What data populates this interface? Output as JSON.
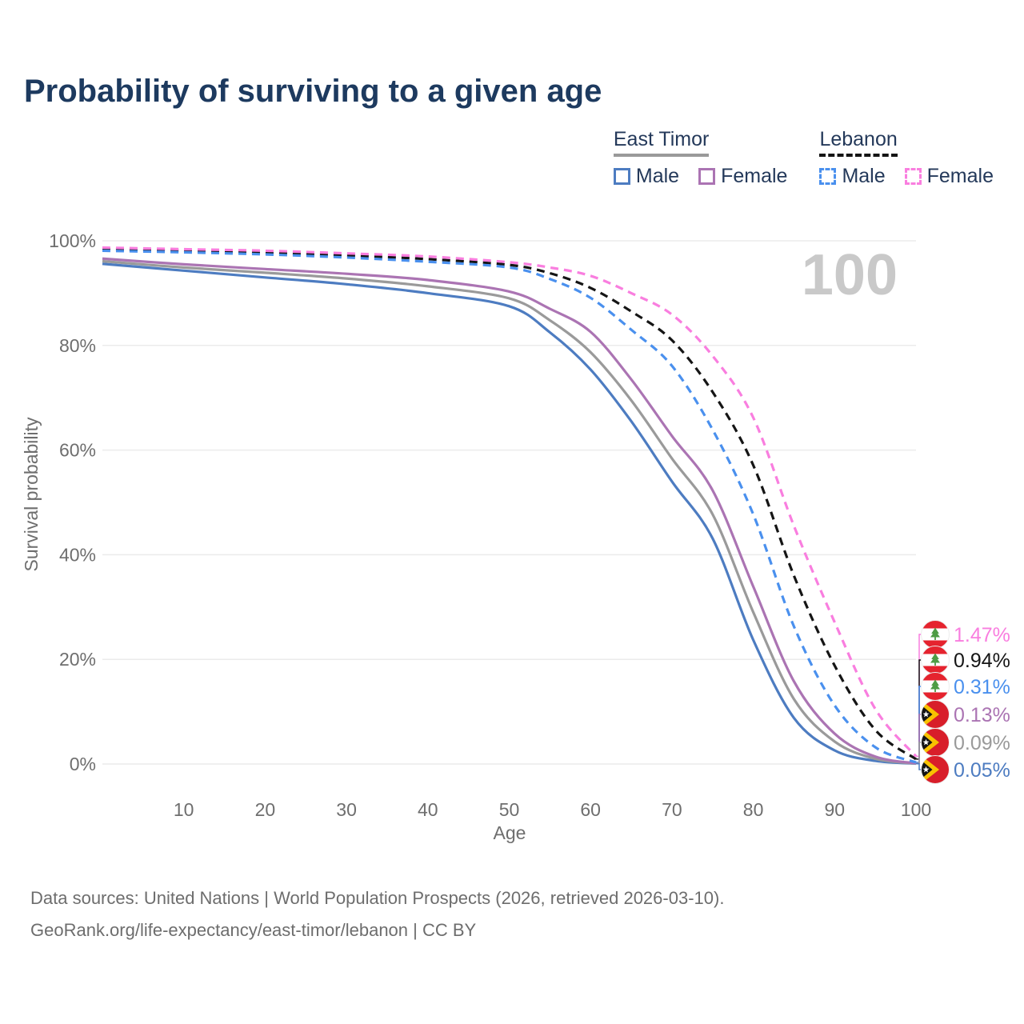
{
  "page": {
    "title": "Probability of surviving to a given age",
    "watermark_age": "100"
  },
  "legend": {
    "groups": [
      {
        "country": "East Timor",
        "line_style": "solid",
        "line_color": "#9a9a9a",
        "items": [
          {
            "label": "Male",
            "color": "#4d7cc1"
          },
          {
            "label": "Female",
            "color": "#ab74b3"
          }
        ]
      },
      {
        "country": "Lebanon",
        "line_style": "dashed",
        "line_color": "#151515",
        "items": [
          {
            "label": "Male",
            "color": "#4a90ee"
          },
          {
            "label": "Female",
            "color": "#f97edf"
          }
        ]
      }
    ]
  },
  "chart_data": {
    "type": "line",
    "title": "Probability of surviving to a given age",
    "xlabel": "Age",
    "ylabel": "Survival probability",
    "xlim": [
      0,
      100
    ],
    "ylim": [
      0,
      100
    ],
    "grid": "horizontal",
    "legend_position": "top-right",
    "x_ticks": [
      10,
      20,
      30,
      40,
      50,
      60,
      70,
      80,
      90,
      100
    ],
    "y_ticks": [
      {
        "value": 0,
        "label": "0%"
      },
      {
        "value": 20,
        "label": "20%"
      },
      {
        "value": 40,
        "label": "40%"
      },
      {
        "value": 60,
        "label": "60%"
      },
      {
        "value": 80,
        "label": "80%"
      },
      {
        "value": 100,
        "label": "100%"
      }
    ],
    "x": [
      0,
      10,
      20,
      30,
      40,
      50,
      55,
      60,
      65,
      70,
      75,
      80,
      85,
      90,
      95,
      100
    ],
    "series": [
      {
        "name": "East Timor Male",
        "country": "East Timor",
        "sex": "Male",
        "color": "#4d7cc1",
        "dash": false,
        "flag": "east-timor",
        "end_label": "0.05%",
        "values": [
          95.6,
          94.3,
          93.0,
          91.7,
          90.0,
          87.5,
          82.5,
          75.4,
          65.5,
          54.0,
          43.1,
          23.7,
          8.8,
          2.6,
          0.6,
          0.05
        ]
      },
      {
        "name": "East Timor Both sexes",
        "country": "East Timor",
        "sex": "Both",
        "color": "#9a9a9a",
        "dash": false,
        "flag": "east-timor",
        "end_label": "0.09%",
        "values": [
          96.1,
          94.9,
          93.9,
          92.8,
          91.3,
          89.0,
          84.8,
          78.7,
          69.5,
          58.4,
          47.7,
          29.0,
          12.4,
          4.3,
          1.0,
          0.09
        ]
      },
      {
        "name": "East Timor Female",
        "country": "East Timor",
        "sex": "Female",
        "color": "#ab74b3",
        "dash": false,
        "flag": "east-timor",
        "end_label": "0.13%",
        "values": [
          96.6,
          95.5,
          94.6,
          93.7,
          92.5,
          90.3,
          87.0,
          82.6,
          73.5,
          62.7,
          52.3,
          33.9,
          15.8,
          5.8,
          1.4,
          0.13
        ]
      },
      {
        "name": "Lebanon Both sexes",
        "country": "Lebanon",
        "sex": "Both",
        "color": "#151515",
        "dash": true,
        "flag": "lebanon",
        "end_label": "0.94%",
        "values": [
          98.4,
          98.1,
          97.7,
          97.2,
          96.5,
          95.4,
          93.8,
          91.0,
          86.5,
          81.0,
          71.1,
          57.1,
          36.0,
          18.8,
          6.5,
          0.94
        ]
      },
      {
        "name": "Lebanon Male",
        "country": "Lebanon",
        "sex": "Male",
        "color": "#4a90ee",
        "dash": true,
        "flag": "lebanon",
        "end_label": "0.31%",
        "values": [
          98.1,
          97.8,
          97.4,
          96.8,
          96.0,
          94.9,
          92.7,
          89.1,
          83.0,
          76.1,
          63.9,
          47.7,
          26.3,
          11.2,
          3.2,
          0.31
        ]
      },
      {
        "name": "Lebanon Female",
        "country": "Lebanon",
        "sex": "Female",
        "color": "#f97edf",
        "dash": true,
        "flag": "lebanon",
        "end_label": "1.47%",
        "values": [
          98.7,
          98.4,
          98.1,
          97.6,
          97.0,
          95.9,
          94.9,
          93.3,
          90.0,
          85.9,
          78.0,
          66.2,
          45.5,
          27.1,
          10.5,
          1.47
        ]
      }
    ]
  },
  "footer": {
    "line1": "Data sources: United Nations | World Population Prospects (2026, retrieved 2026-03-10).",
    "line2": "GeoRank.org/life-expectancy/east-timor/lebanon | CC BY"
  }
}
